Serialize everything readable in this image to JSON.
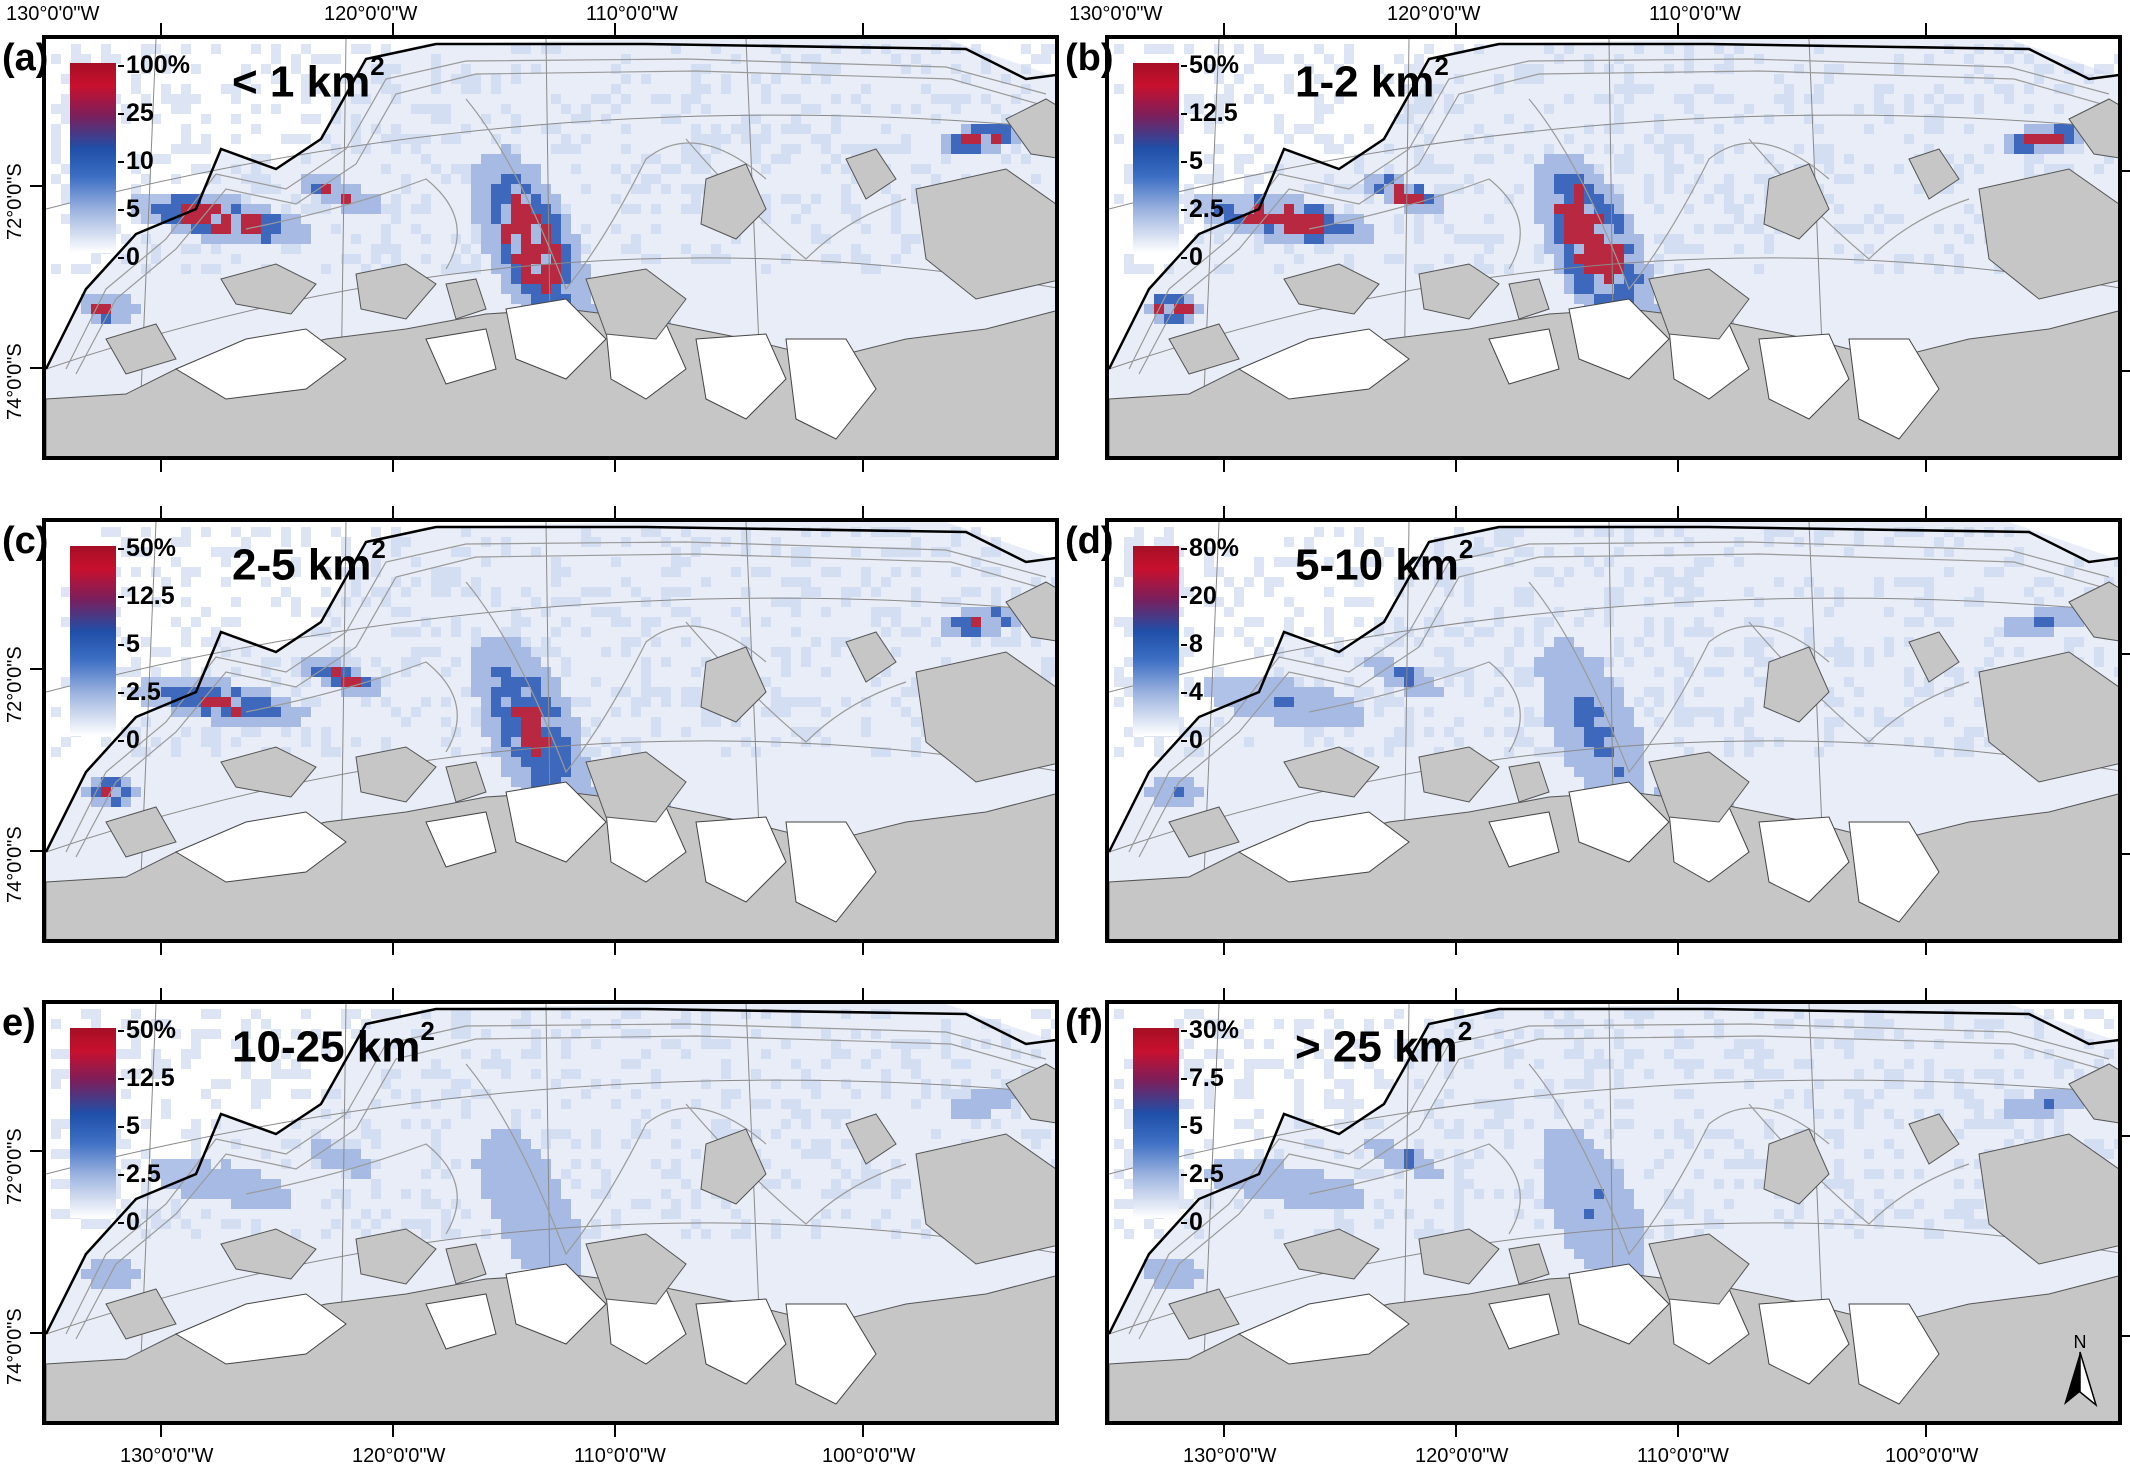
{
  "axes": {
    "lon_labels": [
      "130°0'0\"W",
      "120°0'0\"W",
      "110°0'0\"W",
      "100°0'0\"W"
    ],
    "lat_labels": [
      "72°0'0\"S",
      "74°0'0\"S"
    ]
  },
  "colors": {
    "land": "#c6c6c6",
    "ice_shelf": "#ffffff",
    "ocean_background": "#e8edf7",
    "high": "#b3122b",
    "mid": "#2a59b5",
    "low": "#ffffff",
    "contour": "#9a9a9a",
    "coast": "#000000"
  },
  "north_arrow": {
    "label": "N",
    "icon": "north-arrow-icon"
  },
  "panels": [
    {
      "label": "(a)",
      "title": "< 1 km",
      "superscript": "2",
      "colorbar": [
        "100%",
        "25",
        "10",
        "5",
        "0"
      ],
      "intensity": 1.0
    },
    {
      "label": "(b)",
      "title": "1-2 km",
      "superscript": "2",
      "colorbar": [
        "50%",
        "12.5",
        "5",
        "2.5",
        "0"
      ],
      "intensity": 1.0
    },
    {
      "label": "(c)",
      "title": "2-5 km",
      "superscript": "2",
      "colorbar": [
        "50%",
        "12.5",
        "5",
        "2.5",
        "0"
      ],
      "intensity": 0.85
    },
    {
      "label": "(d)",
      "title": "5-10 km",
      "superscript": "2",
      "colorbar": [
        "80%",
        "20",
        "8",
        "4",
        "0"
      ],
      "intensity": 0.6
    },
    {
      "label": "e)",
      "title": "10-25 km",
      "superscript": "2",
      "colorbar": [
        "50%",
        "12.5",
        "5",
        "2.5",
        "0"
      ],
      "intensity": 0.45
    },
    {
      "label": "(f)",
      "title": "> 25 km",
      "superscript": "2",
      "colorbar": [
        "30%",
        "7.5",
        "5",
        "2.5",
        "0"
      ],
      "intensity": 0.55
    }
  ]
}
